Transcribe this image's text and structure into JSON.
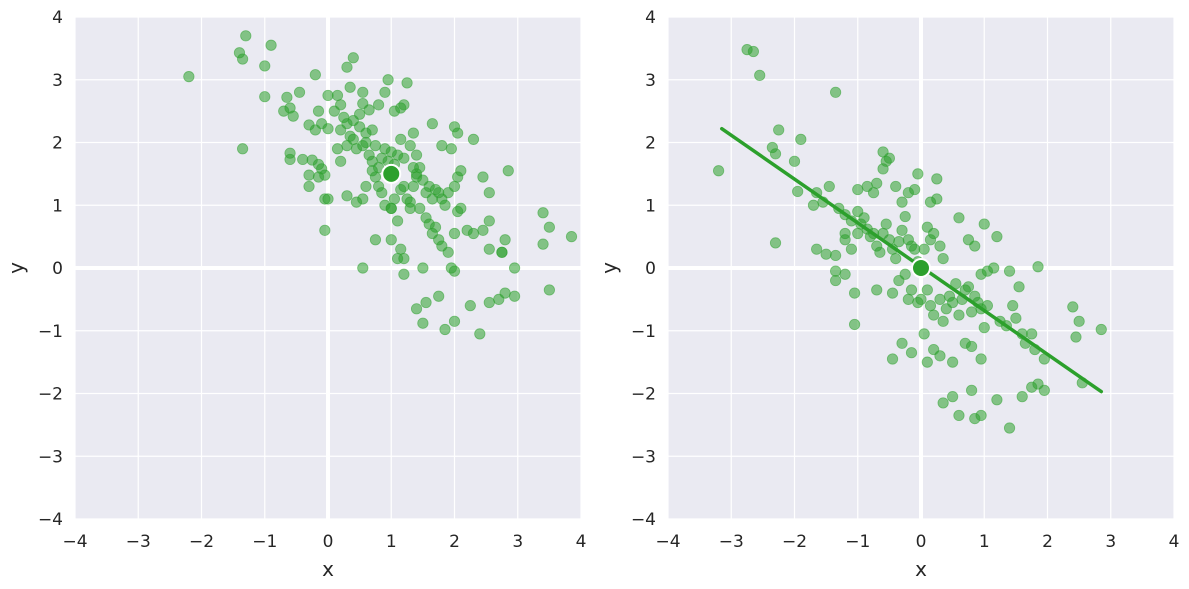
{
  "chart_data": [
    {
      "type": "scatter",
      "title": "",
      "xlabel": "x",
      "ylabel": "y",
      "xlim": [
        -4,
        4
      ],
      "ylim": [
        -4,
        4
      ],
      "xticks": [
        "−4",
        "−3",
        "−2",
        "−1",
        "0",
        "1",
        "2",
        "3",
        "4"
      ],
      "yticks": [
        "4",
        "3",
        "2",
        "1",
        "0",
        "−1",
        "−2",
        "−3",
        "−4"
      ],
      "grid": true,
      "point_color": "#2ca02c",
      "background": "#eaeaf2",
      "mean": [
        1.0,
        1.5
      ],
      "points": [
        [
          -2.2,
          3.05
        ],
        [
          -1.4,
          3.43
        ],
        [
          -1.3,
          3.7
        ],
        [
          -1.35,
          3.33
        ],
        [
          -1.0,
          3.22
        ],
        [
          -0.9,
          3.55
        ],
        [
          -1.35,
          1.9
        ],
        [
          -1.0,
          2.73
        ],
        [
          -0.7,
          2.5
        ],
        [
          -0.65,
          2.72
        ],
        [
          -0.6,
          2.55
        ],
        [
          -0.55,
          2.42
        ],
        [
          -0.45,
          2.8
        ],
        [
          -0.3,
          2.28
        ],
        [
          -0.2,
          2.2
        ],
        [
          -0.2,
          3.08
        ],
        [
          -0.15,
          2.5
        ],
        [
          -0.1,
          2.3
        ],
        [
          0.0,
          2.22
        ],
        [
          0.0,
          2.75
        ],
        [
          -0.6,
          1.83
        ],
        [
          -0.6,
          1.73
        ],
        [
          -0.4,
          1.73
        ],
        [
          -0.25,
          1.72
        ],
        [
          -0.15,
          1.65
        ],
        [
          -0.1,
          1.58
        ],
        [
          -0.3,
          1.48
        ],
        [
          -0.3,
          1.3
        ],
        [
          -0.15,
          1.45
        ],
        [
          -0.05,
          1.48
        ],
        [
          -0.05,
          1.1
        ],
        [
          0.0,
          1.1
        ],
        [
          -0.05,
          0.6
        ],
        [
          0.1,
          2.5
        ],
        [
          0.15,
          2.75
        ],
        [
          0.2,
          2.6
        ],
        [
          0.2,
          2.2
        ],
        [
          0.25,
          2.4
        ],
        [
          0.3,
          2.3
        ],
        [
          0.35,
          2.88
        ],
        [
          0.4,
          2.35
        ],
        [
          0.5,
          2.45
        ],
        [
          0.55,
          2.62
        ],
        [
          0.55,
          2.8
        ],
        [
          0.6,
          2.15
        ],
        [
          0.65,
          2.52
        ],
        [
          0.7,
          2.2
        ],
        [
          0.8,
          2.6
        ],
        [
          0.9,
          2.8
        ],
        [
          0.95,
          3.0
        ],
        [
          1.05,
          2.5
        ],
        [
          1.15,
          2.55
        ],
        [
          1.2,
          2.6
        ],
        [
          1.25,
          2.95
        ],
        [
          0.3,
          3.2
        ],
        [
          0.4,
          3.35
        ],
        [
          0.15,
          1.9
        ],
        [
          0.2,
          1.7
        ],
        [
          0.3,
          1.95
        ],
        [
          0.35,
          2.1
        ],
        [
          0.4,
          2.05
        ],
        [
          0.45,
          1.9
        ],
        [
          0.5,
          2.25
        ],
        [
          0.55,
          1.95
        ],
        [
          0.6,
          2.0
        ],
        [
          0.65,
          1.8
        ],
        [
          0.7,
          1.7
        ],
        [
          0.75,
          1.95
        ],
        [
          0.8,
          1.6
        ],
        [
          0.85,
          1.75
        ],
        [
          0.9,
          1.9
        ],
        [
          0.95,
          1.7
        ],
        [
          1.0,
          1.85
        ],
        [
          1.05,
          1.65
        ],
        [
          1.1,
          1.8
        ],
        [
          1.15,
          2.05
        ],
        [
          1.2,
          1.75
        ],
        [
          1.3,
          1.95
        ],
        [
          1.35,
          2.15
        ],
        [
          1.4,
          1.8
        ],
        [
          1.4,
          1.5
        ],
        [
          1.35,
          1.6
        ],
        [
          1.45,
          1.6
        ],
        [
          0.3,
          1.15
        ],
        [
          0.45,
          1.05
        ],
        [
          0.55,
          1.1
        ],
        [
          0.6,
          1.3
        ],
        [
          0.7,
          1.55
        ],
        [
          0.75,
          1.45
        ],
        [
          0.8,
          1.3
        ],
        [
          0.85,
          1.2
        ],
        [
          0.9,
          1.0
        ],
        [
          1.0,
          0.95
        ],
        [
          1.05,
          1.1
        ],
        [
          1.15,
          1.25
        ],
        [
          1.2,
          1.3
        ],
        [
          1.25,
          1.1
        ],
        [
          1.3,
          1.05
        ],
        [
          1.35,
          1.3
        ],
        [
          1.4,
          1.45
        ],
        [
          1.5,
          1.4
        ],
        [
          1.55,
          1.2
        ],
        [
          1.6,
          1.3
        ],
        [
          1.65,
          1.1
        ],
        [
          1.7,
          1.25
        ],
        [
          1.75,
          1.2
        ],
        [
          1.8,
          1.1
        ],
        [
          1.85,
          1.0
        ],
        [
          1.9,
          1.2
        ],
        [
          2.0,
          1.3
        ],
        [
          2.05,
          1.45
        ],
        [
          2.1,
          1.55
        ],
        [
          1.65,
          2.3
        ],
        [
          1.8,
          1.95
        ],
        [
          1.95,
          1.9
        ],
        [
          2.0,
          2.25
        ],
        [
          2.05,
          2.15
        ],
        [
          2.3,
          2.05
        ],
        [
          2.45,
          1.45
        ],
        [
          2.55,
          1.2
        ],
        [
          2.85,
          1.55
        ],
        [
          1.3,
          0.95
        ],
        [
          1.45,
          0.95
        ],
        [
          1.55,
          0.8
        ],
        [
          1.6,
          0.7
        ],
        [
          1.65,
          0.55
        ],
        [
          1.7,
          0.65
        ],
        [
          1.75,
          0.45
        ],
        [
          1.8,
          0.35
        ],
        [
          1.9,
          0.25
        ],
        [
          2.0,
          0.55
        ],
        [
          2.05,
          0.9
        ],
        [
          2.1,
          0.95
        ],
        [
          2.2,
          0.6
        ],
        [
          2.3,
          0.55
        ],
        [
          2.45,
          0.6
        ],
        [
          2.55,
          0.75
        ],
        [
          2.8,
          0.45
        ],
        [
          2.75,
          0.25
        ],
        [
          2.95,
          0.0
        ],
        [
          1.0,
          0.95
        ],
        [
          1.1,
          0.75
        ],
        [
          1.15,
          0.3
        ],
        [
          1.2,
          0.15
        ],
        [
          1.1,
          0.15
        ],
        [
          1.0,
          0.45
        ],
        [
          0.75,
          0.45
        ],
        [
          0.55,
          0.0
        ],
        [
          1.2,
          -0.1
        ],
        [
          1.5,
          0.0
        ],
        [
          1.95,
          0.0
        ],
        [
          2.0,
          -0.05
        ],
        [
          2.55,
          0.3
        ],
        [
          2.75,
          0.25
        ],
        [
          2.8,
          -0.4
        ],
        [
          2.95,
          -0.45
        ],
        [
          2.7,
          -0.5
        ],
        [
          2.55,
          -0.55
        ],
        [
          2.4,
          -1.05
        ],
        [
          2.25,
          -0.6
        ],
        [
          2.0,
          -0.85
        ],
        [
          1.85,
          -0.98
        ],
        [
          1.75,
          -0.45
        ],
        [
          1.55,
          -0.55
        ],
        [
          1.5,
          -0.88
        ],
        [
          1.4,
          -0.65
        ],
        [
          3.4,
          0.88
        ],
        [
          3.5,
          0.65
        ],
        [
          3.4,
          0.38
        ],
        [
          3.85,
          0.5
        ],
        [
          3.5,
          -0.35
        ]
      ]
    },
    {
      "type": "scatter",
      "title": "",
      "xlabel": "x",
      "ylabel": "y",
      "xlim": [
        -4,
        4
      ],
      "ylim": [
        -4,
        4
      ],
      "xticks": [
        "−4",
        "−3",
        "−2",
        "−1",
        "0",
        "1",
        "2",
        "3",
        "4"
      ],
      "yticks": [
        "4",
        "3",
        "2",
        "1",
        "0",
        "−1",
        "−2",
        "−3",
        "−4"
      ],
      "grid": true,
      "point_color": "#2ca02c",
      "background": "#eaeaf2",
      "mean": [
        0.0,
        0.0
      ],
      "regression_line": [
        [
          -3.15,
          2.22
        ],
        [
          2.85,
          -1.97
        ]
      ],
      "points": [
        [
          -3.2,
          1.55
        ],
        [
          -2.75,
          3.48
        ],
        [
          -2.65,
          3.45
        ],
        [
          -2.55,
          3.07
        ],
        [
          -1.35,
          2.8
        ],
        [
          -2.25,
          2.2
        ],
        [
          -2.35,
          1.92
        ],
        [
          -2.3,
          1.82
        ],
        [
          -1.9,
          2.05
        ],
        [
          -2.0,
          1.7
        ],
        [
          -1.65,
          1.2
        ],
        [
          -1.7,
          1.0
        ],
        [
          -1.55,
          1.05
        ],
        [
          -1.45,
          1.3
        ],
        [
          -1.3,
          0.95
        ],
        [
          -1.2,
          0.85
        ],
        [
          -1.2,
          0.55
        ],
        [
          -1.1,
          0.75
        ],
        [
          -1.0,
          0.9
        ],
        [
          -1.0,
          1.25
        ],
        [
          -0.85,
          1.3
        ],
        [
          -0.75,
          1.2
        ],
        [
          -0.7,
          1.35
        ],
        [
          -0.6,
          1.58
        ],
        [
          -0.55,
          1.7
        ],
        [
          -0.5,
          1.75
        ],
        [
          -0.6,
          1.85
        ],
        [
          -0.4,
          1.3
        ],
        [
          -0.3,
          1.05
        ],
        [
          -0.2,
          1.2
        ],
        [
          -0.1,
          1.25
        ],
        [
          -0.05,
          1.5
        ],
        [
          0.15,
          1.05
        ],
        [
          0.25,
          1.1
        ],
        [
          0.25,
          1.42
        ],
        [
          -1.95,
          1.22
        ],
        [
          -1.65,
          0.3
        ],
        [
          -1.5,
          0.22
        ],
        [
          -1.35,
          0.2
        ],
        [
          -1.2,
          0.45
        ],
        [
          -1.1,
          0.3
        ],
        [
          -1.0,
          0.55
        ],
        [
          -0.95,
          0.7
        ],
        [
          -0.9,
          0.8
        ],
        [
          -0.85,
          0.62
        ],
        [
          -0.8,
          0.5
        ],
        [
          -0.75,
          0.55
        ],
        [
          -0.7,
          0.35
        ],
        [
          -0.65,
          0.25
        ],
        [
          -0.6,
          0.55
        ],
        [
          -0.55,
          0.7
        ],
        [
          -0.5,
          0.45
        ],
        [
          -0.45,
          0.3
        ],
        [
          -0.4,
          0.15
        ],
        [
          -0.35,
          0.42
        ],
        [
          -0.3,
          0.6
        ],
        [
          -0.25,
          0.82
        ],
        [
          -0.2,
          0.45
        ],
        [
          -0.15,
          0.35
        ],
        [
          -0.1,
          0.3
        ],
        [
          -0.05,
          0.1
        ],
        [
          0.05,
          0.3
        ],
        [
          0.1,
          0.65
        ],
        [
          0.15,
          0.45
        ],
        [
          0.2,
          0.55
        ],
        [
          0.3,
          0.35
        ],
        [
          0.35,
          0.15
        ],
        [
          -2.3,
          0.4
        ],
        [
          -1.35,
          -0.05
        ],
        [
          -1.35,
          -0.2
        ],
        [
          -1.2,
          -0.1
        ],
        [
          -1.05,
          -0.4
        ],
        [
          -1.05,
          -0.9
        ],
        [
          -0.7,
          -0.35
        ],
        [
          -0.45,
          -0.4
        ],
        [
          -0.35,
          -0.2
        ],
        [
          -0.25,
          -0.1
        ],
        [
          -0.2,
          -0.5
        ],
        [
          -0.15,
          -0.35
        ],
        [
          -0.05,
          -0.55
        ],
        [
          0.0,
          -0.5
        ],
        [
          0.05,
          -0.05
        ],
        [
          0.1,
          -0.35
        ],
        [
          0.15,
          -0.6
        ],
        [
          0.2,
          -0.75
        ],
        [
          0.3,
          -0.5
        ],
        [
          0.35,
          -0.85
        ],
        [
          0.4,
          -0.65
        ],
        [
          0.45,
          -0.45
        ],
        [
          0.5,
          -0.55
        ],
        [
          0.55,
          -0.25
        ],
        [
          0.6,
          -0.75
        ],
        [
          0.65,
          -0.5
        ],
        [
          0.7,
          -0.35
        ],
        [
          0.75,
          -0.3
        ],
        [
          0.8,
          -0.7
        ],
        [
          0.85,
          -0.45
        ],
        [
          0.9,
          -0.55
        ],
        [
          0.95,
          -0.65
        ],
        [
          1.0,
          -0.95
        ],
        [
          1.05,
          -0.6
        ],
        [
          0.95,
          -0.1
        ],
        [
          1.05,
          -0.05
        ],
        [
          1.15,
          0.0
        ],
        [
          1.25,
          -0.85
        ],
        [
          1.35,
          -0.92
        ],
        [
          1.45,
          -0.6
        ],
        [
          1.5,
          -0.8
        ],
        [
          1.6,
          -1.05
        ],
        [
          1.65,
          -1.2
        ],
        [
          1.75,
          -1.05
        ],
        [
          1.8,
          -1.3
        ],
        [
          1.95,
          -1.45
        ],
        [
          1.85,
          0.02
        ],
        [
          1.55,
          -0.3
        ],
        [
          1.4,
          -0.05
        ],
        [
          0.6,
          0.8
        ],
        [
          0.75,
          0.45
        ],
        [
          0.85,
          0.35
        ],
        [
          1.0,
          0.7
        ],
        [
          1.2,
          0.5
        ],
        [
          -0.45,
          -1.45
        ],
        [
          -0.3,
          -1.2
        ],
        [
          -0.15,
          -1.35
        ],
        [
          0.05,
          -1.05
        ],
        [
          0.1,
          -1.5
        ],
        [
          0.2,
          -1.3
        ],
        [
          0.3,
          -1.4
        ],
        [
          0.5,
          -1.5
        ],
        [
          0.7,
          -1.2
        ],
        [
          0.8,
          -1.25
        ],
        [
          0.95,
          -1.45
        ],
        [
          0.8,
          -1.95
        ],
        [
          0.85,
          -2.4
        ],
        [
          0.95,
          -2.35
        ],
        [
          0.6,
          -2.35
        ],
        [
          0.5,
          -2.05
        ],
        [
          0.35,
          -2.15
        ],
        [
          1.2,
          -2.1
        ],
        [
          1.4,
          -2.55
        ],
        [
          1.6,
          -2.05
        ],
        [
          1.75,
          -1.9
        ],
        [
          1.85,
          -1.85
        ],
        [
          1.95,
          -1.95
        ],
        [
          2.4,
          -0.62
        ],
        [
          2.5,
          -0.85
        ],
        [
          2.45,
          -1.1
        ],
        [
          2.55,
          -1.83
        ],
        [
          2.85,
          -0.98
        ]
      ]
    }
  ]
}
